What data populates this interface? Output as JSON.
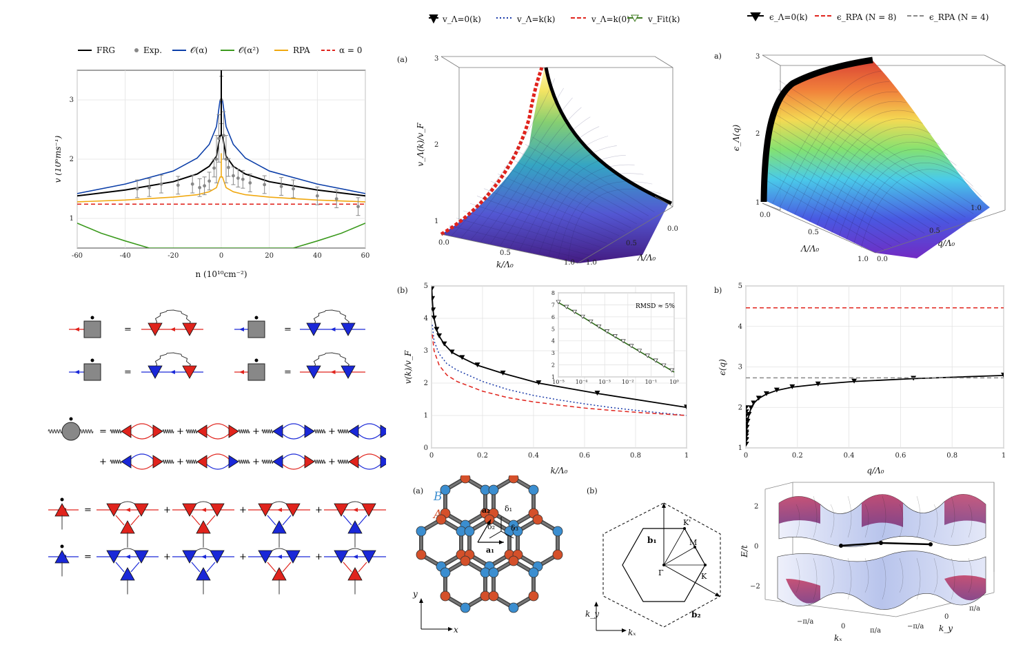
{
  "top_left": {
    "legend": [
      "FRG",
      "Exp.",
      "𝒪(α)",
      "𝒪(α²)",
      "RPA",
      "α = 0"
    ],
    "xlabel": "n (10¹⁰cm⁻²)",
    "ylabel": "v (10⁶ms⁻¹)"
  },
  "mid_top": {
    "legend": [
      "v_Λ=0(k)",
      "v_Λ=k(k)",
      "v_Λ=k(0)",
      "v_Fit(k)"
    ],
    "tag": "(a)",
    "zlabel": "v_Λ(k)/v_F",
    "xlabel": "k/Λ₀",
    "ylabel": "Λ/Λ₀"
  },
  "mid_b": {
    "tag": "(b)",
    "xlabel": "k/Λ₀",
    "ylabel": "v(k)/v_F",
    "inset_note": "RMSD ≈ 5%"
  },
  "right_top": {
    "legend": [
      "ϵ_Λ=0(k)",
      "ϵ_RPA (N = 8)",
      "ϵ_RPA (N = 4)"
    ],
    "tag": "a)",
    "zlabel": "ϵ_Λ(q)",
    "xlabel": "Λ/Λ₀",
    "ylabel": "q/Λ₀"
  },
  "right_b": {
    "tag": "b)",
    "xlabel": "q/Λ₀",
    "ylabel": "ϵ(q)"
  },
  "lattice": {
    "tag": "(a)",
    "labelB": "B",
    "labelA": "A",
    "a1": "a₁",
    "a2": "a₂",
    "d1": "δ₁",
    "d2": "δ₂",
    "d3": "δ₃",
    "x": "x",
    "y": "y"
  },
  "bz": {
    "tag": "(b)",
    "b1": "b₁",
    "b2": "b₂",
    "K": "K",
    "Kp": "K'",
    "M": "M",
    "G": "Γ",
    "kx": "kₓ",
    "ky": "k_y"
  },
  "band": {
    "zlabel": "E/t",
    "kx": "kₓ",
    "ky": "k_y"
  },
  "colors": {
    "frg": "#000000",
    "exp": "#888888",
    "oa": "#0b3ea8",
    "oa2": "#3c9a1e",
    "rpa": "#f0a80f",
    "a0": "#e0231c",
    "fermion_red": "#e0231c",
    "fermion_blue": "#1a28d8"
  },
  "chart_data": [
    {
      "type": "line",
      "title": "",
      "xlabel": "n (10¹⁰cm⁻²)",
      "ylabel": "v (10⁶ms⁻¹)",
      "xlim": [
        -60,
        60
      ],
      "ylim": [
        0.5,
        3.5
      ],
      "x_ticks": [
        -60,
        -40,
        -20,
        0,
        20,
        40,
        60
      ],
      "y_ticks": [
        1,
        2,
        3
      ],
      "series": [
        {
          "name": "FRG",
          "x": [
            -60,
            -40,
            -20,
            -10,
            -5,
            -2,
            -0.5,
            0.5,
            2,
            5,
            10,
            20,
            40,
            60
          ],
          "values": [
            1.38,
            1.48,
            1.62,
            1.75,
            1.88,
            2.05,
            2.4,
            2.4,
            2.05,
            1.88,
            1.75,
            1.62,
            1.48,
            1.38
          ]
        },
        {
          "name": "𝒪(α)",
          "x": [
            -60,
            -40,
            -20,
            -10,
            -5,
            -2,
            -0.5,
            0.5,
            2,
            5,
            10,
            20,
            40,
            60
          ],
          "values": [
            1.42,
            1.58,
            1.8,
            2.02,
            2.25,
            2.55,
            3.0,
            3.0,
            2.55,
            2.25,
            2.02,
            1.8,
            1.58,
            1.42
          ]
        },
        {
          "name": "𝒪(α²)",
          "x": [
            -60,
            -50,
            -40,
            -30,
            30,
            40,
            50,
            60
          ],
          "values": [
            0.92,
            0.75,
            0.62,
            0.5,
            0.5,
            0.62,
            0.75,
            0.92
          ]
        },
        {
          "name": "RPA",
          "x": [
            -60,
            -40,
            -20,
            -10,
            -5,
            -2,
            -0.5,
            0.5,
            2,
            5,
            10,
            20,
            40,
            60
          ],
          "values": [
            1.28,
            1.31,
            1.36,
            1.4,
            1.45,
            1.52,
            1.7,
            1.7,
            1.52,
            1.45,
            1.4,
            1.36,
            1.31,
            1.28
          ]
        },
        {
          "name": "α = 0",
          "x": [
            -60,
            60
          ],
          "values": [
            1.24,
            1.24
          ]
        },
        {
          "name": "Exp.",
          "x": [
            -35,
            -30,
            -25,
            -18,
            -12,
            -9,
            -7,
            -5,
            -3,
            -2,
            -1,
            0,
            1,
            2,
            3,
            5,
            7,
            9,
            12,
            18,
            25,
            30,
            40,
            48,
            57
          ],
          "values": [
            1.5,
            1.52,
            1.58,
            1.56,
            1.58,
            1.52,
            1.55,
            1.63,
            1.85,
            2.0,
            2.35,
            3.0,
            2.4,
            2.0,
            1.86,
            1.72,
            1.68,
            1.66,
            1.6,
            1.57,
            1.54,
            1.5,
            1.38,
            1.33,
            1.2
          ]
        }
      ]
    },
    {
      "type": "line",
      "title": "",
      "xlabel": "k/Λ₀",
      "ylabel": "v(k)/v_F",
      "xlim": [
        0,
        1
      ],
      "ylim": [
        0,
        5
      ],
      "x_ticks": [
        0,
        0.2,
        0.4,
        0.6,
        0.8,
        1.0
      ],
      "y_ticks": [
        0,
        1,
        2,
        3,
        4,
        5
      ],
      "series": [
        {
          "name": "v_Λ=0(k)",
          "x": [
            0.001,
            0.003,
            0.006,
            0.01,
            0.02,
            0.03,
            0.05,
            0.08,
            0.12,
            0.18,
            0.28,
            0.42,
            0.65,
            1.0
          ],
          "values": [
            4.9,
            4.6,
            4.25,
            4.0,
            3.65,
            3.45,
            3.2,
            2.95,
            2.78,
            2.55,
            2.3,
            2.0,
            1.68,
            1.25
          ]
        },
        {
          "name": "v_Λ=k(k)",
          "x": [
            0.003,
            0.01,
            0.03,
            0.06,
            0.1,
            0.2,
            0.3,
            0.4,
            0.5,
            0.6,
            0.7,
            0.8,
            0.9,
            1.0
          ],
          "values": [
            3.8,
            3.3,
            2.9,
            2.6,
            2.4,
            2.05,
            1.8,
            1.62,
            1.48,
            1.36,
            1.25,
            1.16,
            1.08,
            1.0
          ]
        },
        {
          "name": "v_Λ=k(0)",
          "x": [
            0.003,
            0.01,
            0.03,
            0.06,
            0.1,
            0.2,
            0.3,
            0.4,
            0.5,
            0.6,
            0.7,
            0.8,
            0.9,
            1.0
          ],
          "values": [
            3.5,
            3.0,
            2.55,
            2.25,
            2.05,
            1.75,
            1.55,
            1.42,
            1.32,
            1.23,
            1.16,
            1.1,
            1.05,
            1.0
          ]
        }
      ]
    },
    {
      "type": "line",
      "title": "",
      "xlabel": "",
      "ylabel": "",
      "xscale": "log",
      "xlim": [
        1e-05,
        1
      ],
      "ylim": [
        1,
        8
      ],
      "x_ticks": [
        "10⁻⁵",
        "10⁻⁴",
        "10⁻³",
        "10⁻²",
        "10⁻¹",
        "10⁰"
      ],
      "y_ticks": [
        1,
        2,
        3,
        4,
        5,
        6,
        7,
        8
      ],
      "annotation": "RMSD ≈ 5%",
      "series": [
        {
          "name": "v_Fit(k)",
          "x": [
            1e-05,
            0.0001,
            0.001,
            0.01,
            0.1,
            1
          ],
          "values": [
            7.2,
            6.05,
            4.85,
            3.7,
            2.55,
            1.4
          ]
        }
      ]
    },
    {
      "type": "line",
      "title": "",
      "xlabel": "q/Λ₀",
      "ylabel": "ϵ(q)",
      "xlim": [
        0,
        1
      ],
      "ylim": [
        1,
        5
      ],
      "x_ticks": [
        0,
        0.2,
        0.4,
        0.6,
        0.8,
        1.0
      ],
      "y_ticks": [
        1,
        2,
        3,
        4,
        5
      ],
      "series": [
        {
          "name": "ϵ_Λ=0(k)",
          "x": [
            0.0005,
            0.001,
            0.002,
            0.004,
            0.007,
            0.012,
            0.02,
            0.03,
            0.05,
            0.08,
            0.12,
            0.18,
            0.28,
            0.42,
            0.65,
            1.0
          ],
          "values": [
            1.08,
            1.2,
            1.35,
            1.5,
            1.65,
            1.82,
            1.98,
            2.1,
            2.22,
            2.33,
            2.42,
            2.5,
            2.57,
            2.64,
            2.71,
            2.79
          ]
        },
        {
          "name": "ϵ_RPA (N = 8)",
          "x": [
            0,
            1
          ],
          "values": [
            4.46,
            4.46
          ]
        },
        {
          "name": "ϵ_RPA (N = 4)",
          "x": [
            0,
            1
          ],
          "values": [
            2.73,
            2.73
          ]
        }
      ]
    }
  ]
}
